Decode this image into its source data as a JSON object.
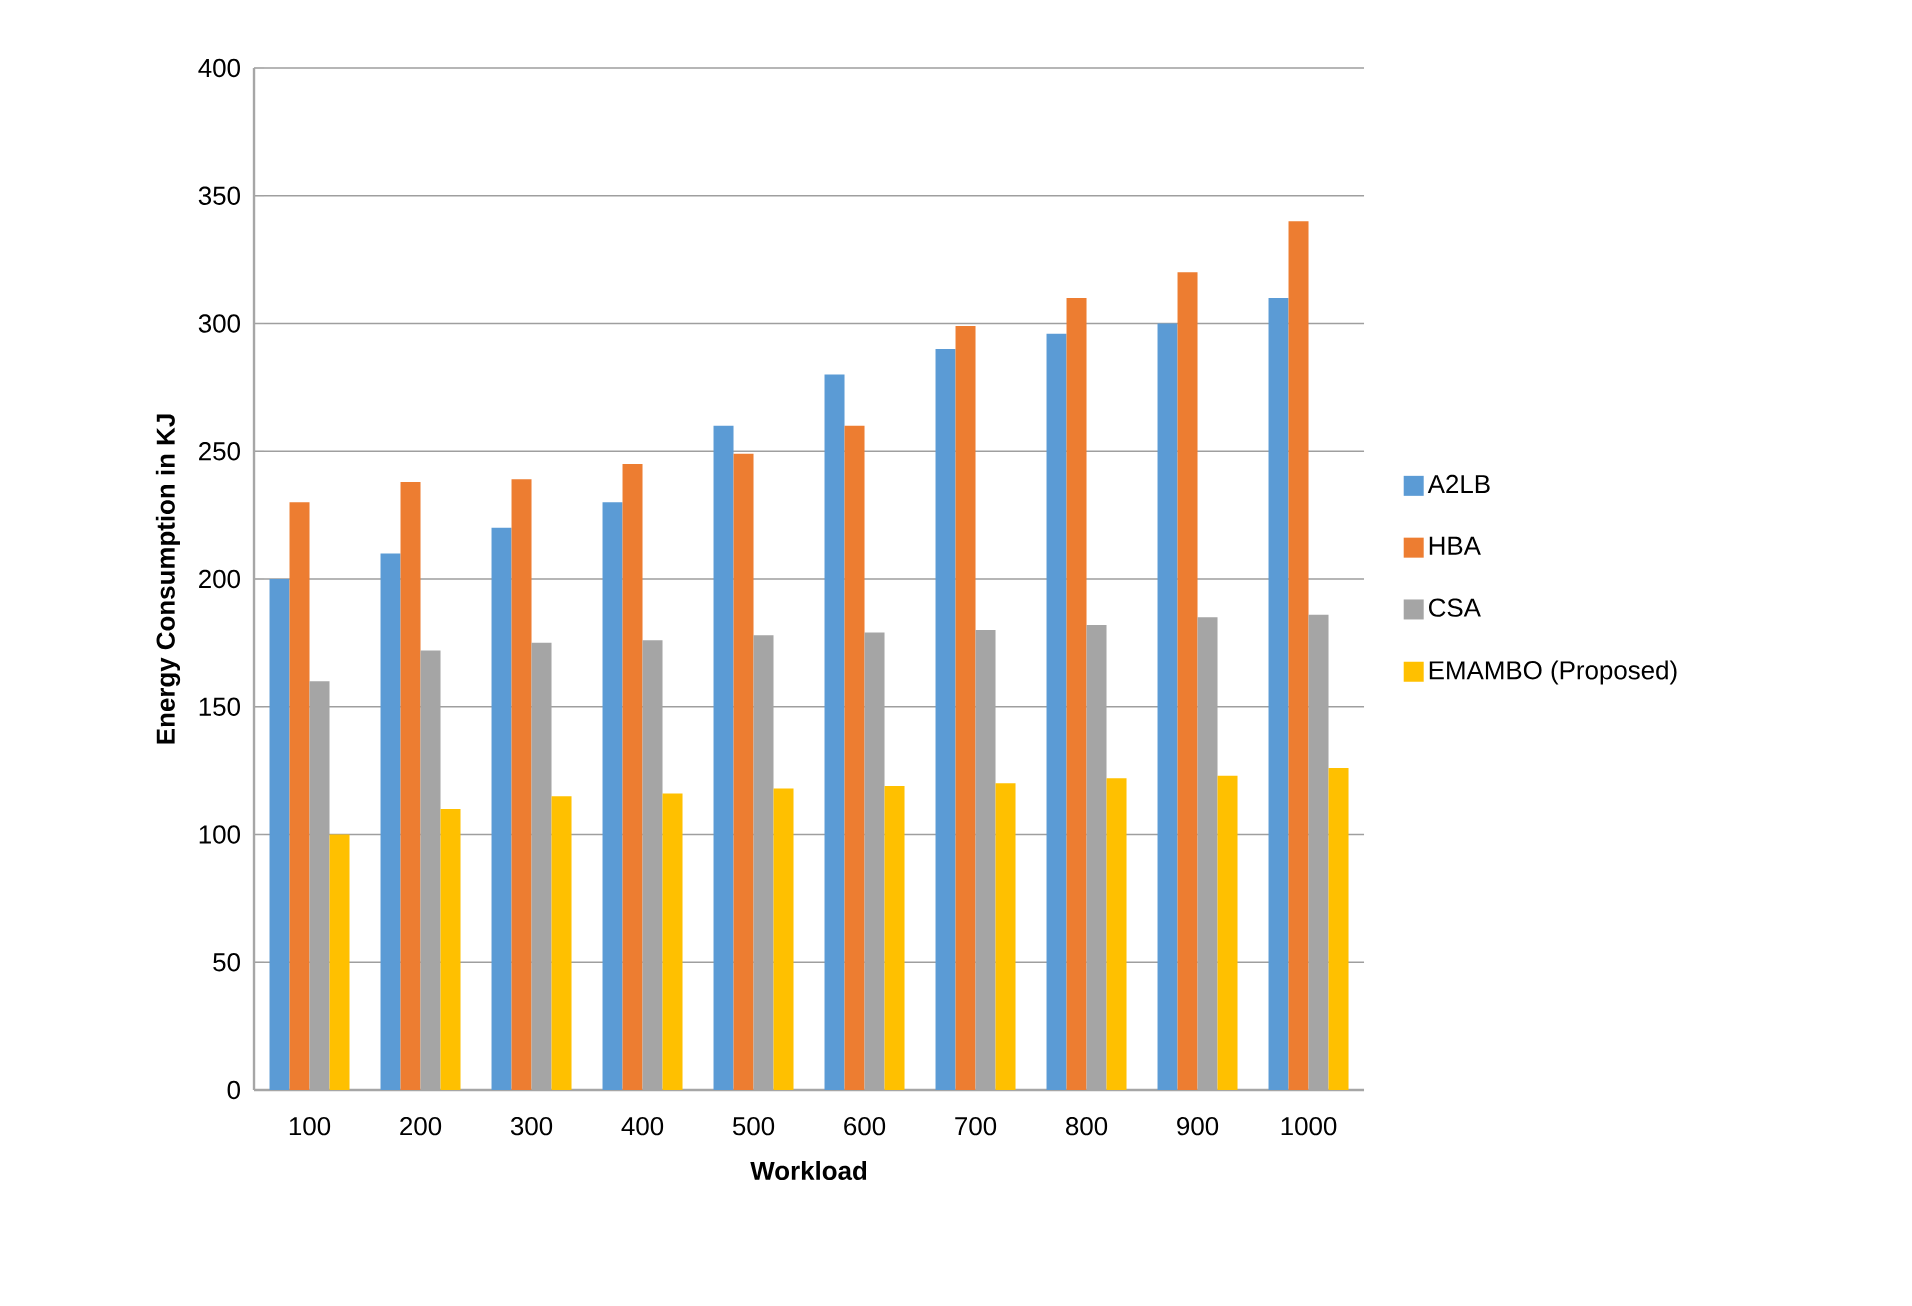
{
  "chart_data": {
    "type": "bar",
    "xlabel": "Workload",
    "ylabel": "Energy Consumption in KJ",
    "categories": [
      "100",
      "200",
      "300",
      "400",
      "500",
      "600",
      "700",
      "800",
      "900",
      "1000"
    ],
    "series": [
      {
        "name": "A2LB",
        "color": "#5b9bd5",
        "values": [
          200,
          210,
          220,
          230,
          260,
          280,
          290,
          296,
          300,
          310
        ]
      },
      {
        "name": "HBA",
        "color": "#ed7d31",
        "values": [
          230,
          238,
          239,
          245,
          249,
          260,
          299,
          310,
          320,
          340
        ]
      },
      {
        "name": "CSA",
        "color": "#a5a5a5",
        "values": [
          160,
          172,
          175,
          176,
          178,
          179,
          180,
          182,
          185,
          186
        ]
      },
      {
        "name": "EMAMBO (Proposed)",
        "color": "#ffc000",
        "values": [
          100,
          110,
          115,
          116,
          118,
          119,
          120,
          122,
          123,
          126
        ]
      }
    ],
    "ylim": [
      0,
      400
    ],
    "yticks": [
      0,
      50,
      100,
      150,
      200,
      250,
      300,
      350,
      400
    ],
    "grid": "y",
    "legend": "right"
  }
}
